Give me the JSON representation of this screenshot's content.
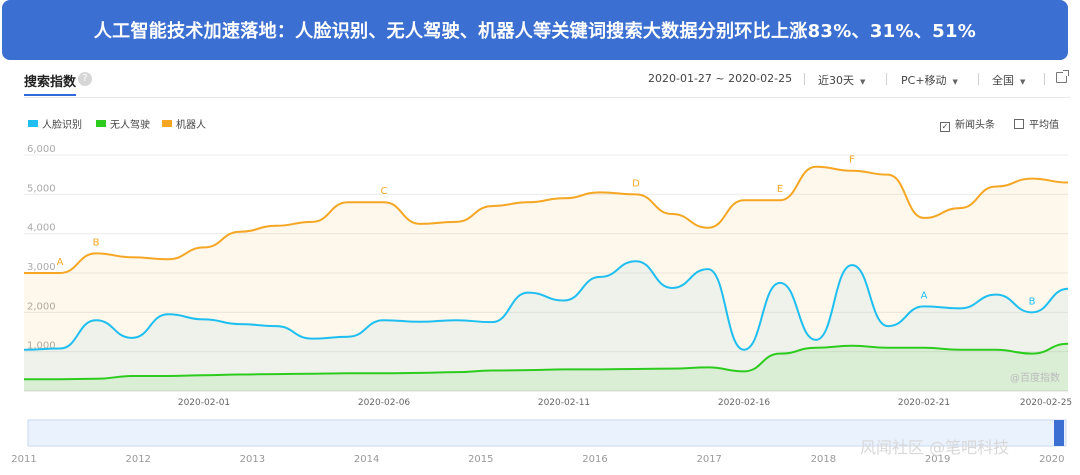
{
  "banner": {
    "title": "人工智能技术加速落地：人脸识别、无人驾驶、机器人等关键词搜索大数据分别环比上涨83%、31%、51%"
  },
  "toolbar": {
    "title": "搜索指数",
    "help": "?",
    "date_range": "2020-01-27 ~ 2020-02-25",
    "period": "近30天",
    "device": "PC+移动",
    "region": "全国"
  },
  "legend": [
    {
      "name": "人脸识别",
      "color": "#1ebff0"
    },
    {
      "name": "无人驾驶",
      "color": "#2ecb1f"
    },
    {
      "name": "机器人",
      "color": "#f5a623"
    }
  ],
  "options": [
    {
      "label": "新闻头条",
      "checked": true,
      "mark": "✓"
    },
    {
      "label": "平均值",
      "checked": false,
      "mark": ""
    }
  ],
  "colors": {
    "face": "#1ebff0",
    "driving": "#2ecb1f",
    "robot": "#f5a623",
    "accent": "#3b6fd1"
  },
  "chart_data": {
    "type": "line",
    "ylim": [
      0,
      6000
    ],
    "yticks": [
      "1,000",
      "2,000",
      "3,000",
      "4,000",
      "5,000",
      "6,000"
    ],
    "x_tick_labels": [
      "2020-02-01",
      "2020-02-06",
      "2020-02-11",
      "2020-02-16",
      "2020-02-21",
      "2020-02-25"
    ],
    "x": [
      "2020-01-27",
      "2020-01-28",
      "2020-01-29",
      "2020-01-30",
      "2020-01-31",
      "2020-02-01",
      "2020-02-02",
      "2020-02-03",
      "2020-02-04",
      "2020-02-05",
      "2020-02-06",
      "2020-02-07",
      "2020-02-08",
      "2020-02-09",
      "2020-02-10",
      "2020-02-11",
      "2020-02-12",
      "2020-02-13",
      "2020-02-14",
      "2020-02-15",
      "2020-02-16",
      "2020-02-17",
      "2020-02-18",
      "2020-02-19",
      "2020-02-20",
      "2020-02-21",
      "2020-02-22",
      "2020-02-23",
      "2020-02-24",
      "2020-02-25"
    ],
    "series": [
      {
        "name": "人脸识别",
        "color": "#1ebff0",
        "values": [
          1050,
          1080,
          1800,
          1350,
          1950,
          1820,
          1700,
          1650,
          1330,
          1380,
          1800,
          1760,
          1800,
          1750,
          2500,
          2300,
          2900,
          3300,
          2620,
          3100,
          1050,
          2750,
          1300,
          3200,
          1650,
          2150,
          2100,
          2450,
          2000,
          2600
        ]
      },
      {
        "name": "无人驾驶",
        "color": "#2ecb1f",
        "values": [
          300,
          300,
          310,
          380,
          380,
          400,
          420,
          430,
          440,
          450,
          450,
          460,
          480,
          520,
          530,
          550,
          550,
          560,
          570,
          600,
          500,
          950,
          1100,
          1150,
          1100,
          1100,
          1050,
          1050,
          950,
          1200
        ]
      },
      {
        "name": "机器人",
        "color": "#f5a623",
        "values": [
          3000,
          3000,
          3500,
          3400,
          3350,
          3650,
          4050,
          4200,
          4300,
          4800,
          4800,
          4250,
          4300,
          4700,
          4800,
          4900,
          5050,
          5000,
          4500,
          4150,
          4850,
          4850,
          5700,
          5600,
          5500,
          4400,
          4650,
          5200,
          5400,
          5300
        ]
      }
    ],
    "annotations": [
      {
        "series": "机器人",
        "label": "A",
        "x": "2020-01-27"
      },
      {
        "series": "机器人",
        "label": "B",
        "x": "2020-01-29"
      },
      {
        "series": "机器人",
        "label": "C",
        "x": "2020-02-06"
      },
      {
        "series": "机器人",
        "label": "D",
        "x": "2020-02-13"
      },
      {
        "series": "机器人",
        "label": "E",
        "x": "2020-02-17"
      },
      {
        "series": "机器人",
        "label": "F",
        "x": "2020-02-19"
      },
      {
        "series": "人脸识别",
        "label": "A",
        "x": "2020-02-21"
      },
      {
        "series": "人脸识别",
        "label": "B",
        "x": "2020-02-24"
      }
    ],
    "source_label": "@百度指数",
    "timeline_labels": [
      "2011",
      "2012",
      "2013",
      "2014",
      "2015",
      "2016",
      "2017",
      "2018",
      "2019",
      "2020"
    ],
    "grid": true,
    "legend_position": "top-left"
  },
  "watermark": "风闻社区 @笔吧科技"
}
